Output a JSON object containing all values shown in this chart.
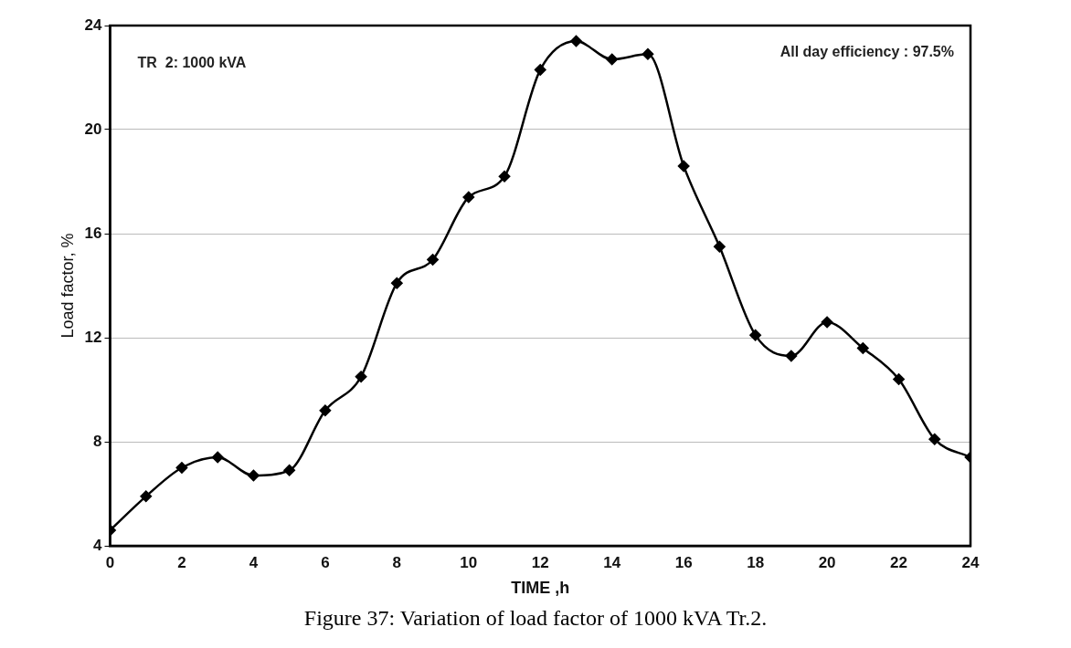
{
  "chart_data": {
    "type": "line",
    "xlabel": "TIME ,h",
    "ylabel": "Load factor, %",
    "annotations": [
      "TR  2: 1000 kVA",
      "All day efficiency : 97.5%",
      "Figure 37: Variation of load factor of 1000 kVA Tr.2."
    ],
    "x": [
      0,
      1,
      2,
      3,
      4,
      5,
      6,
      7,
      8,
      9,
      10,
      11,
      12,
      13,
      14,
      15,
      16,
      17,
      18,
      19,
      20,
      21,
      22,
      23,
      24
    ],
    "series": [
      {
        "color": "#000000",
        "values": [
          4.6,
          5.9,
          7.0,
          7.4,
          6.7,
          6.9,
          9.2,
          10.5,
          14.1,
          15.0,
          17.4,
          18.2,
          22.3,
          23.4,
          22.7,
          22.9,
          18.6,
          15.5,
          12.1,
          11.3,
          12.6,
          11.6,
          10.4,
          8.1,
          7.4
        ]
      }
    ],
    "xlim": [
      0,
      24
    ],
    "xticks": [
      0,
      2,
      4,
      6,
      8,
      10,
      12,
      14,
      16,
      18,
      20,
      22,
      24
    ],
    "ylim": [
      4,
      24
    ],
    "yticks": [
      4,
      8,
      12,
      16,
      20,
      24
    ],
    "grid": "y",
    "marker": "diamond",
    "line_style": "solid",
    "legend": false
  }
}
